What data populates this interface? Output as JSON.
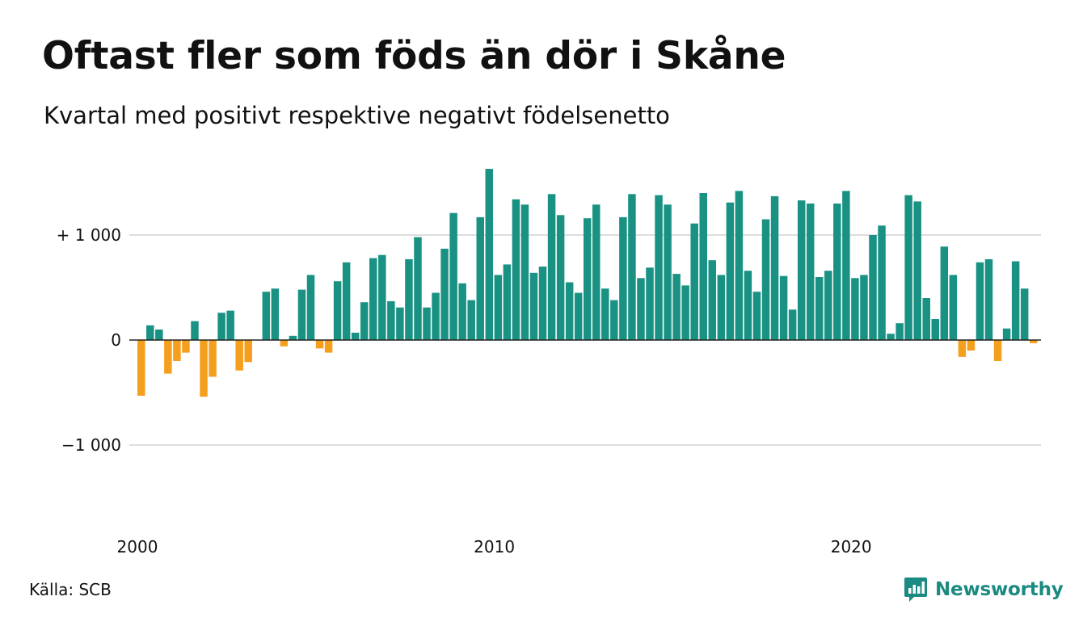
{
  "title": "Oftast fler som föds än dör i Skåne",
  "subtitle": "Kvartal med positivt respektive negativt födelsenetto",
  "source": "Källa: SCB",
  "brand": "Newsworthy",
  "colors": {
    "positive": "#1a9283",
    "negative": "#f59f1e",
    "grid": "#dddddd",
    "zero_line": "#222222",
    "brand": "#1b8a80"
  },
  "chart_data": {
    "type": "bar",
    "title": "Oftast fler som föds än dör i Skåne",
    "subtitle": "Kvartal med positivt respektive negativt födelsenetto",
    "xlabel": "",
    "ylabel": "",
    "ylim": [
      -1500,
      1700
    ],
    "grid": true,
    "yticks": [
      {
        "value": 1000,
        "label": "+ 1 000"
      },
      {
        "value": 0,
        "label": "0"
      },
      {
        "value": -1000,
        "label": "−1 000"
      }
    ],
    "xticks": [
      {
        "value": 2000,
        "label": "2000"
      },
      {
        "value": 2010,
        "label": "2010"
      },
      {
        "value": 2020,
        "label": "2020"
      }
    ],
    "x_start": 2000,
    "periods_per_year": 4,
    "values": [
      -530,
      140,
      100,
      -320,
      -200,
      -120,
      180,
      -540,
      -350,
      260,
      280,
      -290,
      -210,
      0,
      460,
      490,
      -60,
      40,
      480,
      620,
      -80,
      -120,
      560,
      740,
      70,
      360,
      780,
      810,
      370,
      310,
      770,
      980,
      310,
      450,
      870,
      1210,
      540,
      380,
      1170,
      1630,
      620,
      720,
      1340,
      1290,
      640,
      700,
      1390,
      1190,
      550,
      450,
      1160,
      1290,
      490,
      380,
      1170,
      1390,
      590,
      690,
      1380,
      1290,
      630,
      520,
      1110,
      1400,
      760,
      620,
      1310,
      1420,
      660,
      460,
      1150,
      1370,
      610,
      290,
      1330,
      1300,
      600,
      660,
      1300,
      1420,
      590,
      620,
      1000,
      1090,
      60,
      160,
      1380,
      1320,
      400,
      200,
      890,
      620,
      -160,
      -100,
      740,
      770,
      -200,
      110,
      750,
      490,
      -30
    ]
  }
}
